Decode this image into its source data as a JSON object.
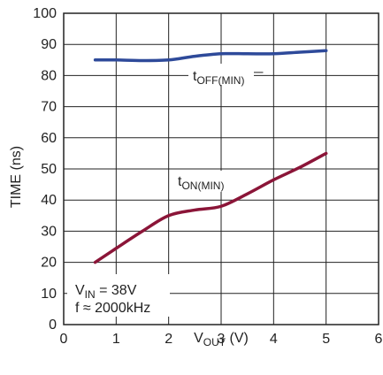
{
  "chart_data": {
    "type": "line",
    "title": "",
    "xlabel": {
      "main": "V",
      "sub": "OUT",
      "suffix": " (V)"
    },
    "ylabel": "TIME (ns)",
    "xlim": [
      0,
      6
    ],
    "ylim": [
      0,
      100
    ],
    "x_ticks": [
      0,
      1,
      2,
      3,
      4,
      5,
      6
    ],
    "y_ticks": [
      0,
      10,
      20,
      30,
      40,
      50,
      60,
      70,
      80,
      90,
      100
    ],
    "grid": true,
    "legend": "none",
    "series": [
      {
        "label": {
          "main": "t",
          "sub": "OFF(MIN)"
        },
        "color": "#2E4A9A",
        "x": [
          0.6,
          1.0,
          1.5,
          2.0,
          2.5,
          3.0,
          3.5,
          4.0,
          4.5,
          5.0
        ],
        "y": [
          85,
          85,
          84.8,
          85,
          86.2,
          87,
          87,
          87,
          87.5,
          88
        ]
      },
      {
        "label": {
          "main": "t",
          "sub": "ON(MIN)"
        },
        "color": "#8B1538",
        "x": [
          0.6,
          1.0,
          1.5,
          2.0,
          2.5,
          3.0,
          3.5,
          4.0,
          4.5,
          5.0
        ],
        "y": [
          20,
          24.5,
          30,
          35,
          36.8,
          38,
          42,
          46.5,
          50.5,
          55
        ]
      }
    ],
    "annotations": {
      "condition_line1": {
        "main": "V",
        "sub": "IN",
        "suffix": " = 38V"
      },
      "condition_line2": "f ≈ 2000kHz"
    }
  }
}
